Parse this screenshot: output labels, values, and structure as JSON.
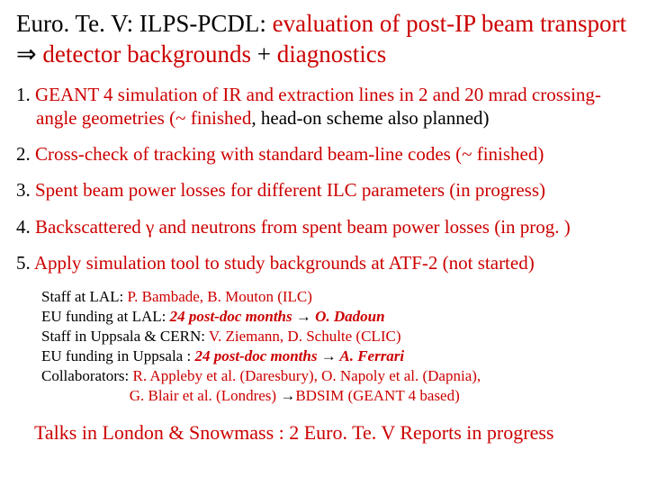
{
  "colors": {
    "red": "#cc0000",
    "black": "#000000",
    "bg": "#ffffff"
  },
  "title": {
    "p1_black": "Euro. Te. V: ILPS-PCDL: ",
    "p1_red": "evaluation of post-IP beam transport ",
    "arrow": "⇒",
    "p2_red": " detector backgrounds ",
    "plus": "+",
    "p3_red": " diagnostics"
  },
  "items": {
    "i1": {
      "num": "1. ",
      "a": "GEANT 4 simulation of IR and extraction lines in 2 and 20 mrad crossing-angle geometries (~ finished",
      "b": ", head-on scheme also planned)"
    },
    "i2": {
      "num": "2. ",
      "a": "Cross-check of tracking with standard beam-line codes (~ finished)"
    },
    "i3": {
      "num": "3. ",
      "a": "Spent beam power losses for different ILC parameters (in progress)"
    },
    "i4": {
      "num": "4. ",
      "a": "Backscattered γ and neutrons from spent beam power losses (in prog. )"
    },
    "i5": {
      "num": "5. ",
      "a": "Apply simulation tool to study backgrounds at ATF-2 (not started)"
    }
  },
  "staff": {
    "r1a": "Staff at LAL: ",
    "r1b": "P. Bambade, B. Mouton (ILC)",
    "r2a": "EU funding at LAL: ",
    "r2b": "24 post-doc months ",
    "r2c": "→",
    "r2d": " O. Dadoun",
    "r3a": "Staff in Uppsala & CERN: ",
    "r3b": "V. Ziemann, D. Schulte (CLIC)",
    "r4a": "EU funding in Uppsala : ",
    "r4b": "24 post-doc months ",
    "r4c": "→",
    "r4d": " A. Ferrari",
    "r5a": "Collaborators: ",
    "r5b": "R. Appleby et al. (Daresbury), O. Napoly et al. (Dapnia),",
    "r6pad": "                       ",
    "r6a": "G. Blair et al. (Londres) ",
    "r6b": "→",
    "r6c": "BDSIM (GEANT 4 based)"
  },
  "footer": "Talks in London & Snowmass : 2 Euro. Te. V Reports in progress"
}
